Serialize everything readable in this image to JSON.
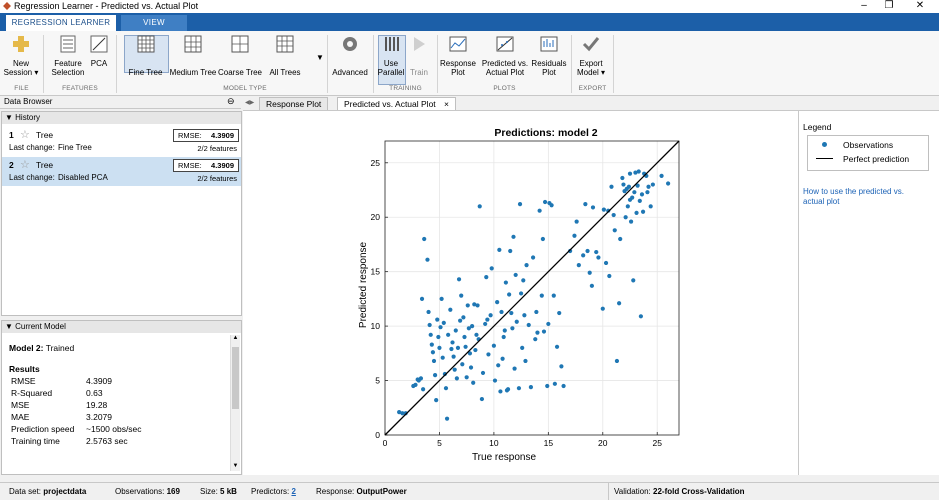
{
  "window": {
    "title": "Regression Learner - Predicted vs. Actual Plot",
    "minimize": "‒",
    "restore": "❐",
    "close": "✕"
  },
  "ribbon_tabs": [
    "REGRESSION LEARNER",
    "VIEW"
  ],
  "toolstrip": {
    "new_session": [
      "New",
      "Session ▾"
    ],
    "feature_selection": [
      "Feature",
      "Selection"
    ],
    "pca": "PCA",
    "fine_tree": "Fine Tree",
    "medium_tree": "Medium Tree",
    "coarse_tree": "Coarse Tree",
    "all_trees": "All Trees",
    "advanced": "Advanced",
    "use_parallel": [
      "Use",
      "Parallel"
    ],
    "train": "Train",
    "response_plot": [
      "Response",
      "Plot"
    ],
    "predicted_vs_actual": [
      "Predicted vs.",
      "Actual Plot"
    ],
    "residuals_plot": [
      "Residuals",
      "Plot"
    ],
    "export_model": [
      "Export",
      "Model ▾"
    ],
    "sections": {
      "file": "FILE",
      "features": "FEATURES",
      "model_type": "MODEL TYPE",
      "training": "TRAINING",
      "plots": "PLOTS",
      "export": "EXPORT"
    }
  },
  "data_browser": {
    "title": "Data Browser",
    "history_title": "History",
    "models": [
      {
        "num": "1",
        "name": "Tree",
        "rmse_label": "RMSE:",
        "rmse": "4.3909",
        "last_change_label": "Last change:",
        "last_change": "Fine Tree",
        "features": "2/2 features"
      },
      {
        "num": "2",
        "name": "Tree",
        "rmse_label": "RMSE:",
        "rmse": "4.3909",
        "last_change_label": "Last change:",
        "last_change": "Disabled PCA",
        "features": "2/2 features"
      }
    ],
    "current_model_title": "Current Model",
    "current_model": {
      "model_label": "Model 2:",
      "status": "Trained",
      "results_title": "Results",
      "rows": [
        {
          "k": "RMSE",
          "v": "4.3909"
        },
        {
          "k": "R-Squared",
          "v": "0.63"
        },
        {
          "k": "MSE",
          "v": "19.28"
        },
        {
          "k": "MAE",
          "v": "3.2079"
        },
        {
          "k": "Prediction speed",
          "v": "~1500 obs/sec"
        },
        {
          "k": "Training time",
          "v": "2.5763 sec"
        }
      ]
    }
  },
  "doc_tabs": [
    "Response Plot",
    "Predicted vs. Actual Plot"
  ],
  "legend_panel": {
    "title": "Legend",
    "observations": "Observations",
    "perfect": "Perfect prediction",
    "help_link": [
      "How to use the predicted vs.",
      "actual plot"
    ]
  },
  "statusbar": {
    "dataset_label": "Data set:",
    "dataset": "projectdata",
    "obs_label": "Observations:",
    "obs": "169",
    "size_label": "Size:",
    "size": "5 kB",
    "pred_label": "Predictors:",
    "pred": "2",
    "resp_label": "Response:",
    "resp": "OutputPower",
    "val_label": "Validation:",
    "val": "22-fold Cross-Validation"
  },
  "colors": {
    "accent": "#1c5fa8",
    "point": "#1f77b4",
    "line": "#000000"
  },
  "chart_data": {
    "type": "scatter",
    "title": "Predictions: model 2",
    "xlabel": "True response",
    "ylabel": "Predicted response",
    "xlim": [
      0,
      27
    ],
    "ylim": [
      0,
      27
    ],
    "xticks": [
      0,
      5,
      10,
      15,
      20,
      25
    ],
    "yticks": [
      0,
      5,
      10,
      15,
      20,
      25
    ],
    "grid": true,
    "series": [
      {
        "name": "Observations",
        "points": [
          [
            1.3,
            2.1
          ],
          [
            1.6,
            2.0
          ],
          [
            1.9,
            2.0
          ],
          [
            2.6,
            4.5
          ],
          [
            2.8,
            4.6
          ],
          [
            3.1,
            5.0
          ],
          [
            3.3,
            5.2
          ],
          [
            3.5,
            4.2
          ],
          [
            3.6,
            18.0
          ],
          [
            3.4,
            12.5
          ],
          [
            3.9,
            16.1
          ],
          [
            4.0,
            11.3
          ],
          [
            4.1,
            10.1
          ],
          [
            4.2,
            9.2
          ],
          [
            4.3,
            8.3
          ],
          [
            4.4,
            7.6
          ],
          [
            4.5,
            6.8
          ],
          [
            4.6,
            5.5
          ],
          [
            4.7,
            3.2
          ],
          [
            4.8,
            10.6
          ],
          [
            4.9,
            9.0
          ],
          [
            5.0,
            8.0
          ],
          [
            5.2,
            12.5
          ],
          [
            5.3,
            7.1
          ],
          [
            5.4,
            10.3
          ],
          [
            5.5,
            5.6
          ],
          [
            5.6,
            4.3
          ],
          [
            5.7,
            1.5
          ],
          [
            5.8,
            9.2
          ],
          [
            6.0,
            11.5
          ],
          [
            6.2,
            8.5
          ],
          [
            6.3,
            7.2
          ],
          [
            6.4,
            6.0
          ],
          [
            6.5,
            9.6
          ],
          [
            6.6,
            5.2
          ],
          [
            6.7,
            8.0
          ],
          [
            6.8,
            14.3
          ],
          [
            6.9,
            10.5
          ],
          [
            7.0,
            12.8
          ],
          [
            7.1,
            6.5
          ],
          [
            7.3,
            9.0
          ],
          [
            7.4,
            8.1
          ],
          [
            7.5,
            5.3
          ],
          [
            7.6,
            11.9
          ],
          [
            7.7,
            9.8
          ],
          [
            7.8,
            7.5
          ],
          [
            7.9,
            6.2
          ],
          [
            8.0,
            10.0
          ],
          [
            8.1,
            4.8
          ],
          [
            8.2,
            12.0
          ],
          [
            8.3,
            7.8
          ],
          [
            8.4,
            9.2
          ],
          [
            8.6,
            8.8
          ],
          [
            8.7,
            21.0
          ],
          [
            8.9,
            3.3
          ],
          [
            9.0,
            5.7
          ],
          [
            9.2,
            10.2
          ],
          [
            9.3,
            14.5
          ],
          [
            9.5,
            7.4
          ],
          [
            9.7,
            11.0
          ],
          [
            9.8,
            15.3
          ],
          [
            10.0,
            8.2
          ],
          [
            10.1,
            5.0
          ],
          [
            10.3,
            12.2
          ],
          [
            10.4,
            6.4
          ],
          [
            10.5,
            17.0
          ],
          [
            10.6,
            4.0
          ],
          [
            10.7,
            11.3
          ],
          [
            10.8,
            7.0
          ],
          [
            11.0,
            9.6
          ],
          [
            11.1,
            14.0
          ],
          [
            11.3,
            4.2
          ],
          [
            11.4,
            12.9
          ],
          [
            11.5,
            16.9
          ],
          [
            11.6,
            11.2
          ],
          [
            11.7,
            9.8
          ],
          [
            11.8,
            18.2
          ],
          [
            11.9,
            6.1
          ],
          [
            12.0,
            14.7
          ],
          [
            12.1,
            10.4
          ],
          [
            12.3,
            4.3
          ],
          [
            12.4,
            21.2
          ],
          [
            12.5,
            13.0
          ],
          [
            12.6,
            8.0
          ],
          [
            12.8,
            11.0
          ],
          [
            12.9,
            6.8
          ],
          [
            13.0,
            15.6
          ],
          [
            13.2,
            10.1
          ],
          [
            13.4,
            4.4
          ],
          [
            13.6,
            16.3
          ],
          [
            13.8,
            8.8
          ],
          [
            14.0,
            9.4
          ],
          [
            14.2,
            20.6
          ],
          [
            14.4,
            12.8
          ],
          [
            14.5,
            18.0
          ],
          [
            14.6,
            9.5
          ],
          [
            14.7,
            21.4
          ],
          [
            14.9,
            4.5
          ],
          [
            15.0,
            10.2
          ],
          [
            15.1,
            21.3
          ],
          [
            15.3,
            21.1
          ],
          [
            15.5,
            12.8
          ],
          [
            15.8,
            8.1
          ],
          [
            16.2,
            6.3
          ],
          [
            16.4,
            4.5
          ],
          [
            17.0,
            16.9
          ],
          [
            17.4,
            18.3
          ],
          [
            17.8,
            15.6
          ],
          [
            18.2,
            16.5
          ],
          [
            18.4,
            21.2
          ],
          [
            18.6,
            16.9
          ],
          [
            18.8,
            14.9
          ],
          [
            19.1,
            20.9
          ],
          [
            19.4,
            16.8
          ],
          [
            19.6,
            16.3
          ],
          [
            20.0,
            11.6
          ],
          [
            20.1,
            20.7
          ],
          [
            20.3,
            15.8
          ],
          [
            20.5,
            20.6
          ],
          [
            20.6,
            14.6
          ],
          [
            20.8,
            22.8
          ],
          [
            21.0,
            20.2
          ],
          [
            21.1,
            18.8
          ],
          [
            21.3,
            6.8
          ],
          [
            21.5,
            12.1
          ],
          [
            21.6,
            18.0
          ],
          [
            21.8,
            23.6
          ],
          [
            22.0,
            22.4
          ],
          [
            22.1,
            20.0
          ],
          [
            22.3,
            21.0
          ],
          [
            22.4,
            22.8
          ],
          [
            22.5,
            24.0
          ],
          [
            22.6,
            19.6
          ],
          [
            22.7,
            21.8
          ],
          [
            22.8,
            14.2
          ],
          [
            22.9,
            22.3
          ],
          [
            23.0,
            24.1
          ],
          [
            23.1,
            20.4
          ],
          [
            23.2,
            22.9
          ],
          [
            23.3,
            24.2
          ],
          [
            23.4,
            21.5
          ],
          [
            23.5,
            10.9
          ],
          [
            23.6,
            22.1
          ],
          [
            23.8,
            24.0
          ],
          [
            24.0,
            23.8
          ],
          [
            24.2,
            22.8
          ],
          [
            24.4,
            21.0
          ],
          [
            24.6,
            23.0
          ],
          [
            25.4,
            23.8
          ],
          [
            26.0,
            23.1
          ],
          [
            22.2,
            22.6
          ],
          [
            21.9,
            23.0
          ],
          [
            23.7,
            20.5
          ],
          [
            24.1,
            22.3
          ],
          [
            22.5,
            21.6
          ],
          [
            3.0,
            5.1
          ],
          [
            5.1,
            9.9
          ],
          [
            6.1,
            7.9
          ],
          [
            7.2,
            10.8
          ],
          [
            8.5,
            11.9
          ],
          [
            9.4,
            10.6
          ],
          [
            10.9,
            9.0
          ],
          [
            11.2,
            4.1
          ],
          [
            12.7,
            14.2
          ],
          [
            13.9,
            11.3
          ],
          [
            15.6,
            4.7
          ],
          [
            16.0,
            11.2
          ],
          [
            19.0,
            13.7
          ],
          [
            17.6,
            19.6
          ]
        ]
      },
      {
        "name": "Perfect prediction",
        "line": [
          [
            0,
            0
          ],
          [
            27,
            27
          ]
        ]
      }
    ]
  }
}
